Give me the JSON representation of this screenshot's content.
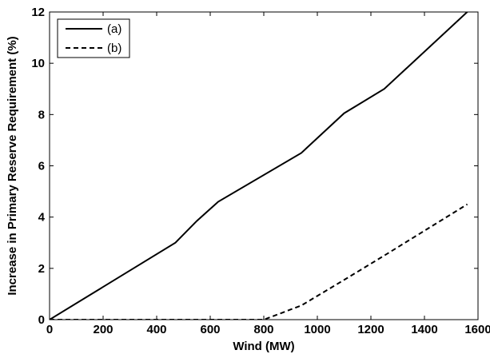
{
  "chart_data": {
    "type": "line",
    "title": "",
    "xlabel": "Wind (MW)",
    "ylabel": "Increase in Primary Reserve Requirement (%)",
    "xlim": [
      0,
      1600
    ],
    "ylim": [
      0,
      12
    ],
    "xticks": [
      0,
      200,
      400,
      600,
      800,
      1000,
      1200,
      1400,
      1600
    ],
    "yticks": [
      0,
      2,
      4,
      6,
      8,
      10,
      12
    ],
    "grid": false,
    "legend_position": "top-left",
    "series": [
      {
        "name": "(a)",
        "style": "solid",
        "color": "#000000",
        "points": [
          [
            0,
            0
          ],
          [
            470,
            3.0
          ],
          [
            550,
            3.85
          ],
          [
            630,
            4.6
          ],
          [
            940,
            6.5
          ],
          [
            1100,
            8.05
          ],
          [
            1250,
            9.0
          ],
          [
            1570,
            12.1
          ]
        ]
      },
      {
        "name": "(b)",
        "style": "dashed",
        "color": "#000000",
        "points": [
          [
            0,
            0
          ],
          [
            800,
            0
          ],
          [
            940,
            0.55
          ],
          [
            1100,
            1.55
          ],
          [
            1250,
            2.5
          ],
          [
            1560,
            4.5
          ]
        ]
      }
    ]
  }
}
